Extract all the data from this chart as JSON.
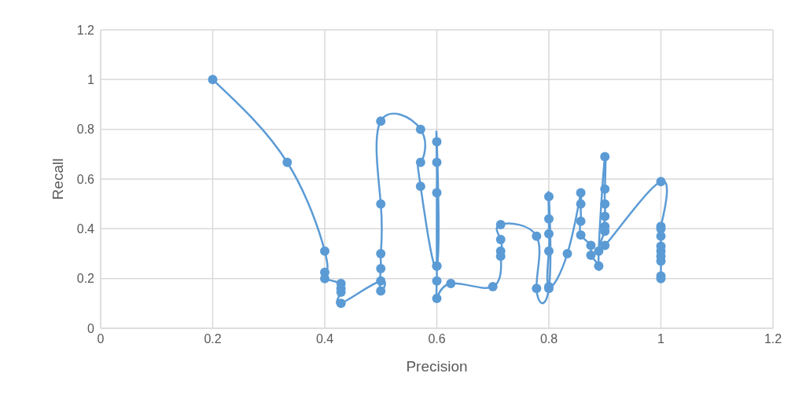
{
  "chart_data": {
    "type": "line",
    "xlabel": "Precision",
    "ylabel": "Recall",
    "xlim": [
      0,
      1.2
    ],
    "xticks": [
      0,
      0.2,
      0.4,
      0.6,
      0.8,
      1,
      1.2
    ],
    "ylim": [
      0,
      1.2
    ],
    "yticks": [
      0,
      0.2,
      0.4,
      0.6,
      0.8,
      1,
      1.2
    ],
    "grid": true,
    "marker": "circle",
    "line_style": "solid",
    "legend": false,
    "series": [
      {
        "color": "#5b9bd5",
        "x": [
          0.2,
          0.333,
          0.4,
          0.4,
          0.4,
          0.429,
          0.429,
          0.429,
          0.429,
          0.5,
          0.5,
          0.5,
          0.5,
          0.5,
          0.5,
          0.571,
          0.571,
          0.571,
          0.6,
          0.6,
          0.6,
          0.6,
          0.6,
          0.6,
          0.6,
          0.625,
          0.7,
          0.714,
          0.714,
          0.714,
          0.714,
          0.778,
          0.778,
          0.8,
          0.8,
          0.8,
          0.8,
          0.8,
          0.8,
          0.833,
          0.857,
          0.857,
          0.857,
          0.857,
          0.875,
          0.875,
          0.889,
          0.889,
          0.9,
          0.9,
          0.9,
          0.9,
          0.9,
          0.9,
          0.9,
          1,
          1,
          1,
          1,
          1,
          1,
          1,
          1,
          1,
          1
        ],
        "values": [
          1.0,
          0.667,
          0.31,
          0.225,
          0.2,
          0.18,
          0.16,
          0.145,
          0.1,
          0.19,
          0.15,
          0.24,
          0.3,
          0.5,
          0.833,
          0.8,
          0.667,
          0.571,
          0.25,
          0.75,
          0.667,
          0.545,
          0.25,
          0.19,
          0.12,
          0.18,
          0.167,
          0.29,
          0.31,
          0.357,
          0.417,
          0.37,
          0.16,
          0.16,
          0.53,
          0.44,
          0.38,
          0.31,
          0.167,
          0.3,
          0.545,
          0.5,
          0.43,
          0.375,
          0.333,
          0.294,
          0.25,
          0.31,
          0.69,
          0.56,
          0.5,
          0.45,
          0.41,
          0.39,
          0.333,
          0.59,
          0.41,
          0.4,
          0.37,
          0.33,
          0.31,
          0.29,
          0.27,
          0.21,
          0.2
        ]
      }
    ]
  }
}
